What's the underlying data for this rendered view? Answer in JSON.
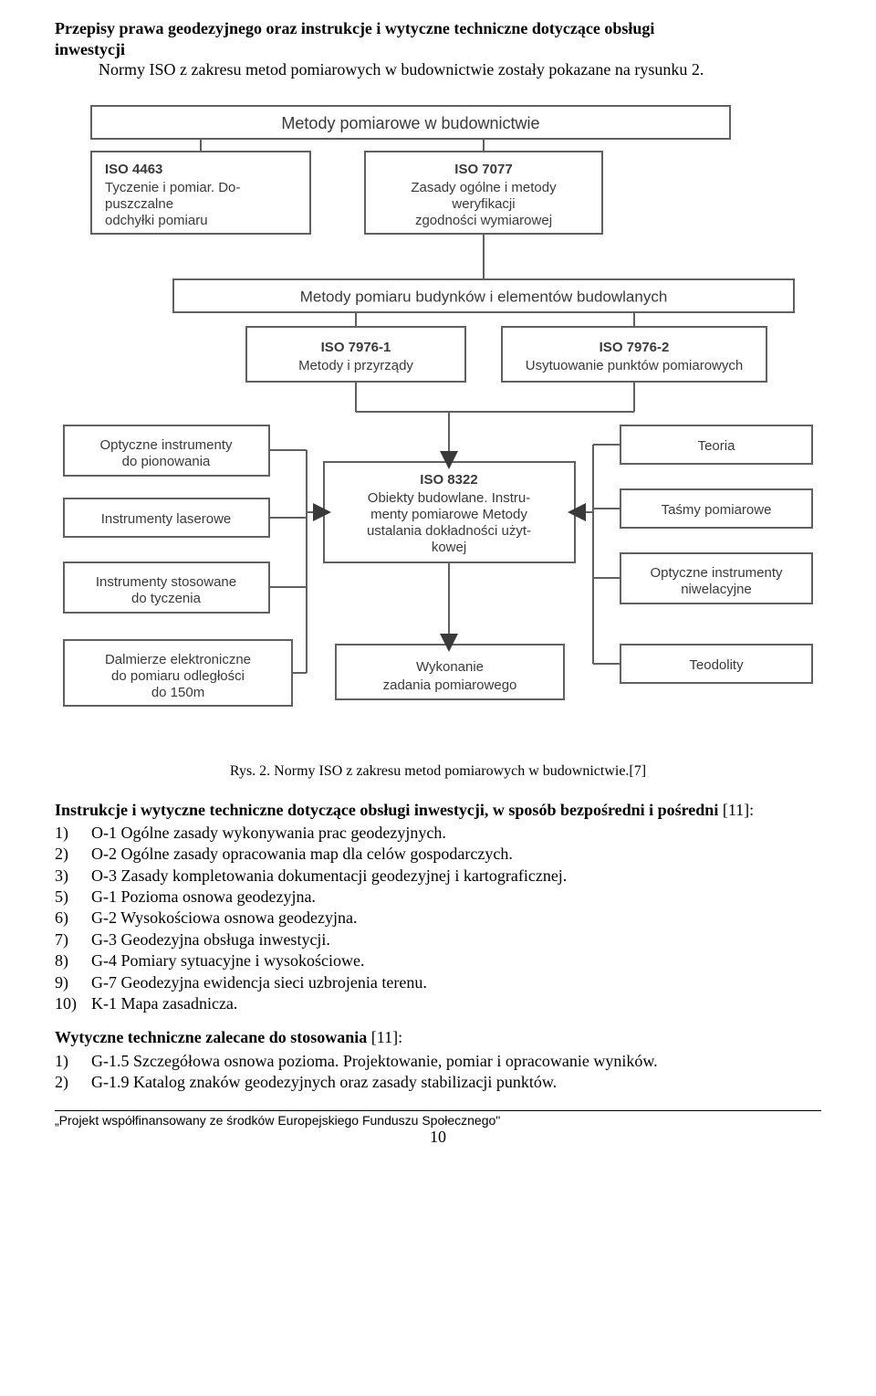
{
  "heading": {
    "line1": "Przepisy prawa geodezyjnego oraz instrukcje i wytyczne techniczne dotyczące obsługi",
    "line2": "inwestycji"
  },
  "intro": "Normy ISO z zakresu metod pomiarowych w budownictwie zostały pokazane na rysunku 2.",
  "diagram": {
    "background": "#ffffff",
    "box_stroke": "#606060",
    "text_color": "#3a3a3a",
    "arrow_fill": "#3a3a3a",
    "font_family": "Arial",
    "title_font": 18,
    "box_font": 15,
    "nodes": {
      "top": {
        "label_lines": [
          "Metody pomiarowe w budownictwie"
        ]
      },
      "iso4463": {
        "label_lines": [
          "ISO 4463",
          "Tyczenie i pomiar. Do-",
          "puszczalne",
          "odchyłki pomiaru"
        ]
      },
      "iso7077": {
        "label_lines": [
          "ISO 7077",
          "Zasady ogólne i metody",
          "weryfikacji",
          "zgodności wymiarowej"
        ]
      },
      "midwide": {
        "label_lines": [
          "Metody pomiaru budynków i elementów budowlanych"
        ]
      },
      "iso79761": {
        "label_lines": [
          "ISO 7976-1",
          "Metody i przyrządy"
        ]
      },
      "iso79762": {
        "label_lines": [
          "ISO 7976-2",
          "Usytuowanie punktów pomiarowych"
        ]
      },
      "opt_pion": {
        "label_lines": [
          "Optyczne instrumenty",
          "do pionowania"
        ]
      },
      "laser": {
        "label_lines": [
          "Instrumenty laserowe"
        ]
      },
      "tycz": {
        "label_lines": [
          "Instrumenty stosowane",
          "do tyczenia"
        ]
      },
      "dalm": {
        "label_lines": [
          "Dalmierze elektroniczne",
          "do pomiaru odległości",
          "do 150m"
        ]
      },
      "iso8322": {
        "label_lines": [
          "ISO 8322",
          "Obiekty budowlane. Instru-",
          "menty pomiarowe Metody",
          "ustalania dokładności użyt-",
          "kowej"
        ]
      },
      "wyk": {
        "label_lines": [
          "Wykonanie",
          "zadania pomiarowego"
        ]
      },
      "teoria": {
        "label_lines": [
          "Teoria"
        ]
      },
      "tasmy": {
        "label_lines": [
          "Taśmy pomiarowe"
        ]
      },
      "opt_niw": {
        "label_lines": [
          "Optyczne instrumenty",
          "niwelacyjne"
        ]
      },
      "teod": {
        "label_lines": [
          "Teodolity"
        ]
      }
    }
  },
  "caption": "Rys. 2. Normy ISO z zakresu metod pomiarowych w budownictwie.[7]",
  "section1": {
    "bold_part": "Instrukcje i wytyczne techniczne dotyczące obsługi inwestycji, w sposób bezpośredni i pośredni",
    "after_bold": " [11]:",
    "items": [
      {
        "n": "1)",
        "t": "O-1 Ogólne zasady wykonywania prac geodezyjnych."
      },
      {
        "n": "2)",
        "t": "O-2 Ogólne zasady opracowania map dla celów gospodarczych."
      },
      {
        "n": "3)",
        "t": "O-3 Zasady kompletowania dokumentacji geodezyjnej i kartograficznej."
      },
      {
        "n": "5)",
        "t": "G-1 Pozioma osnowa geodezyjna."
      },
      {
        "n": "6)",
        "t": "G-2 Wysokościowa osnowa geodezyjna."
      },
      {
        "n": "7)",
        "t": "G-3 Geodezyjna obsługa inwestycji."
      },
      {
        "n": "8)",
        "t": "G-4 Pomiary sytuacyjne i wysokościowe."
      },
      {
        "n": "9)",
        "t": "G-7 Geodezyjna ewidencja sieci uzbrojenia terenu."
      },
      {
        "n": "10)",
        "t": "K-1 Mapa zasadnicza."
      }
    ]
  },
  "section2": {
    "bold_part": "Wytyczne techniczne zalecane do stosowania",
    "after_bold": " [11]:",
    "items": [
      {
        "n": "1)",
        "t": "G-1.5  Szczegółowa osnowa pozioma. Projektowanie, pomiar i opracowanie wyników."
      },
      {
        "n": "2)",
        "t": "G-1.9  Katalog znaków geodezyjnych oraz zasady stabilizacji punktów."
      }
    ]
  },
  "footer": "„Projekt współfinansowany ze środków Europejskiego Funduszu Społecznego\"",
  "page_number": "10"
}
